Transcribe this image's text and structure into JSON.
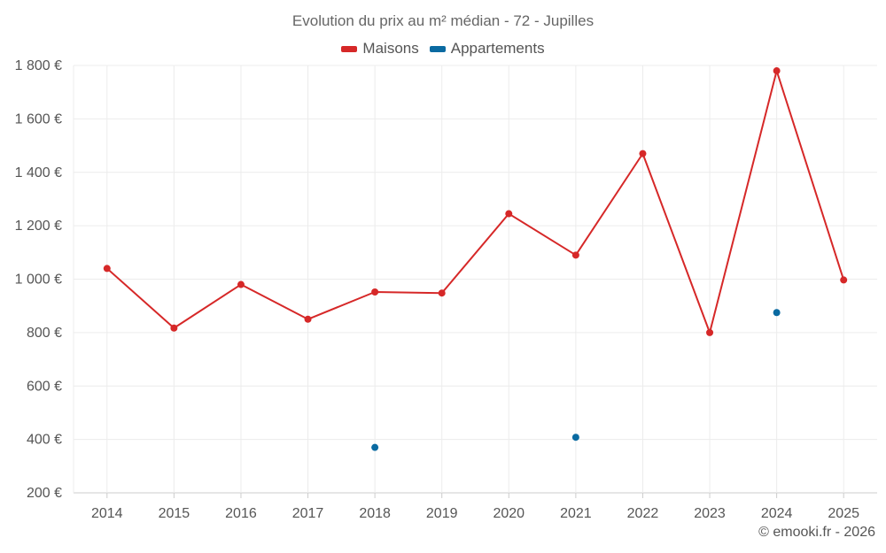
{
  "chart_data": {
    "type": "line",
    "title": "Evolution du prix au m² médian - 72 - Jupilles",
    "categories": [
      "2014",
      "2015",
      "2016",
      "2017",
      "2018",
      "2019",
      "2020",
      "2021",
      "2022",
      "2023",
      "2024",
      "2025"
    ],
    "y_ticks": [
      "200 €",
      "400 €",
      "600 €",
      "800 €",
      "1 000 €",
      "1 200 €",
      "1 400 €",
      "1 600 €",
      "1 800 €"
    ],
    "y_tick_values": [
      200,
      400,
      600,
      800,
      1000,
      1200,
      1400,
      1600,
      1800
    ],
    "ylim": [
      200,
      1800
    ],
    "grid": true,
    "legend_position": "top-center",
    "series": [
      {
        "name": "Maisons",
        "color": "#d62828",
        "line": true,
        "values": [
          1040,
          817,
          980,
          850,
          952,
          948,
          1245,
          1090,
          1470,
          800,
          1780,
          997
        ]
      },
      {
        "name": "Appartements",
        "color": "#0a6aa1",
        "line": false,
        "values": [
          null,
          null,
          null,
          null,
          370,
          null,
          null,
          408,
          null,
          null,
          875,
          null
        ]
      }
    ]
  },
  "credits": "© emooki.fr - 2026"
}
